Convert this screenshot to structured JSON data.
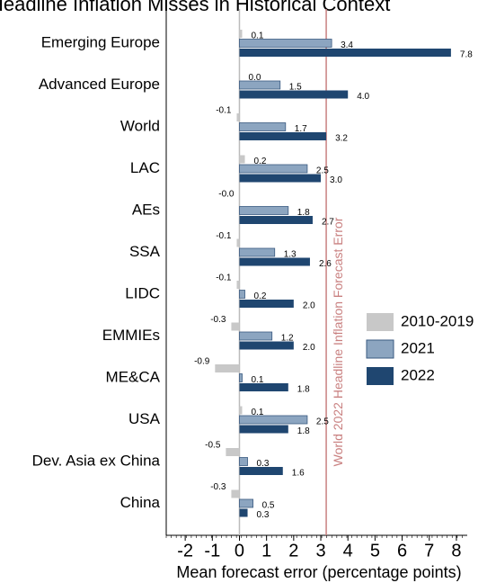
{
  "chart_data": {
    "type": "bar",
    "orientation": "horizontal",
    "title": "Headline Inflation Misses in Historical Context",
    "xlabel": "Mean forecast error (percentage points)",
    "categories": [
      "Emerging Europe",
      "Advanced Europe",
      "World",
      "LAC",
      "AEs",
      "SSA",
      "LIDC",
      "EMMIEs",
      "ME&CA",
      "USA",
      "Dev. Asia ex China",
      "China"
    ],
    "series": [
      {
        "name": "2010-2019",
        "color": "#c8c8c8",
        "values": [
          0.1,
          0.0,
          -0.1,
          0.2,
          -0.0,
          -0.1,
          -0.1,
          -0.3,
          -0.9,
          0.1,
          -0.5,
          -0.3
        ],
        "value_labels": [
          "0.1",
          "0.0",
          "-0.1",
          "0.2",
          "-0.0",
          "-0.1",
          "-0.1",
          "-0.3",
          "-0.9",
          "0.1",
          "-0.5",
          "-0.3"
        ]
      },
      {
        "name": "2021",
        "color": "#8ca5c0",
        "values": [
          3.4,
          1.5,
          1.7,
          2.5,
          1.8,
          1.3,
          0.2,
          1.2,
          0.1,
          2.5,
          0.3,
          0.5
        ],
        "value_labels": [
          "3.4",
          "1.5",
          "1.7",
          "2.5",
          "1.8",
          "1.3",
          "0.2",
          "1.2",
          "0.1",
          "2.5",
          "0.3",
          "0.5"
        ]
      },
      {
        "name": "2022",
        "color": "#1f4670",
        "values": [
          7.8,
          4.0,
          3.2,
          3.0,
          2.7,
          2.6,
          2.0,
          2.0,
          1.8,
          1.8,
          1.6,
          0.3
        ],
        "value_labels": [
          "7.8",
          "4.0",
          "3.2",
          "3.0",
          "2.7",
          "2.6",
          "2.0",
          "2.0",
          "1.8",
          "1.8",
          "1.6",
          "0.3"
        ]
      }
    ],
    "reference_line": {
      "value": 3.2,
      "label": "World 2022 Headline Inflation Forecast Error",
      "color": "#c98080"
    },
    "xlim": [
      -2.7,
      8.4
    ],
    "xticks": [
      -2,
      -1,
      0,
      1,
      2,
      3,
      4,
      5,
      6,
      7,
      8
    ],
    "legend": "right"
  }
}
